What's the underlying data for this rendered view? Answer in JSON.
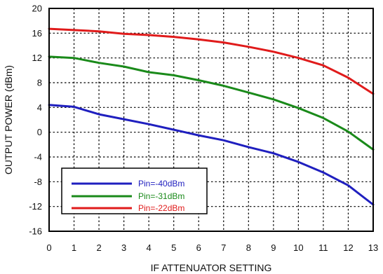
{
  "chart_data": {
    "type": "line",
    "title": "",
    "xlabel": "IF ATTENUATOR SETTING",
    "ylabel": "OUTPUT POWER (dBm)",
    "xlim": [
      0,
      13
    ],
    "ylim": [
      -16,
      20
    ],
    "xticks": [
      0,
      1,
      2,
      3,
      4,
      5,
      6,
      7,
      8,
      9,
      10,
      11,
      12,
      13
    ],
    "yticks": [
      -16,
      -12,
      -8,
      -4,
      0,
      4,
      8,
      12,
      16,
      20
    ],
    "grid": true,
    "legend_position": "bottom-left",
    "x": [
      0,
      1,
      2,
      3,
      4,
      5,
      6,
      7,
      8,
      9,
      10,
      11,
      12,
      13
    ],
    "series": [
      {
        "name": "Pin=-40dBm",
        "color": "#1f1fbf",
        "values": [
          4.4,
          4.1,
          2.9,
          2.1,
          1.3,
          0.4,
          -0.5,
          -1.3,
          -2.4,
          -3.4,
          -4.8,
          -6.5,
          -8.6,
          -11.7
        ]
      },
      {
        "name": "Pin=-31dBm",
        "color": "#1a8a1a",
        "values": [
          12.2,
          12.0,
          11.2,
          10.6,
          9.7,
          9.2,
          8.4,
          7.5,
          6.4,
          5.3,
          3.9,
          2.3,
          0.1,
          -2.8
        ]
      },
      {
        "name": "Pin=-22dBm",
        "color": "#e01b1b",
        "values": [
          16.7,
          16.5,
          16.3,
          15.9,
          15.7,
          15.4,
          15.0,
          14.5,
          13.8,
          13.0,
          12.0,
          10.8,
          8.8,
          6.2
        ]
      }
    ]
  }
}
